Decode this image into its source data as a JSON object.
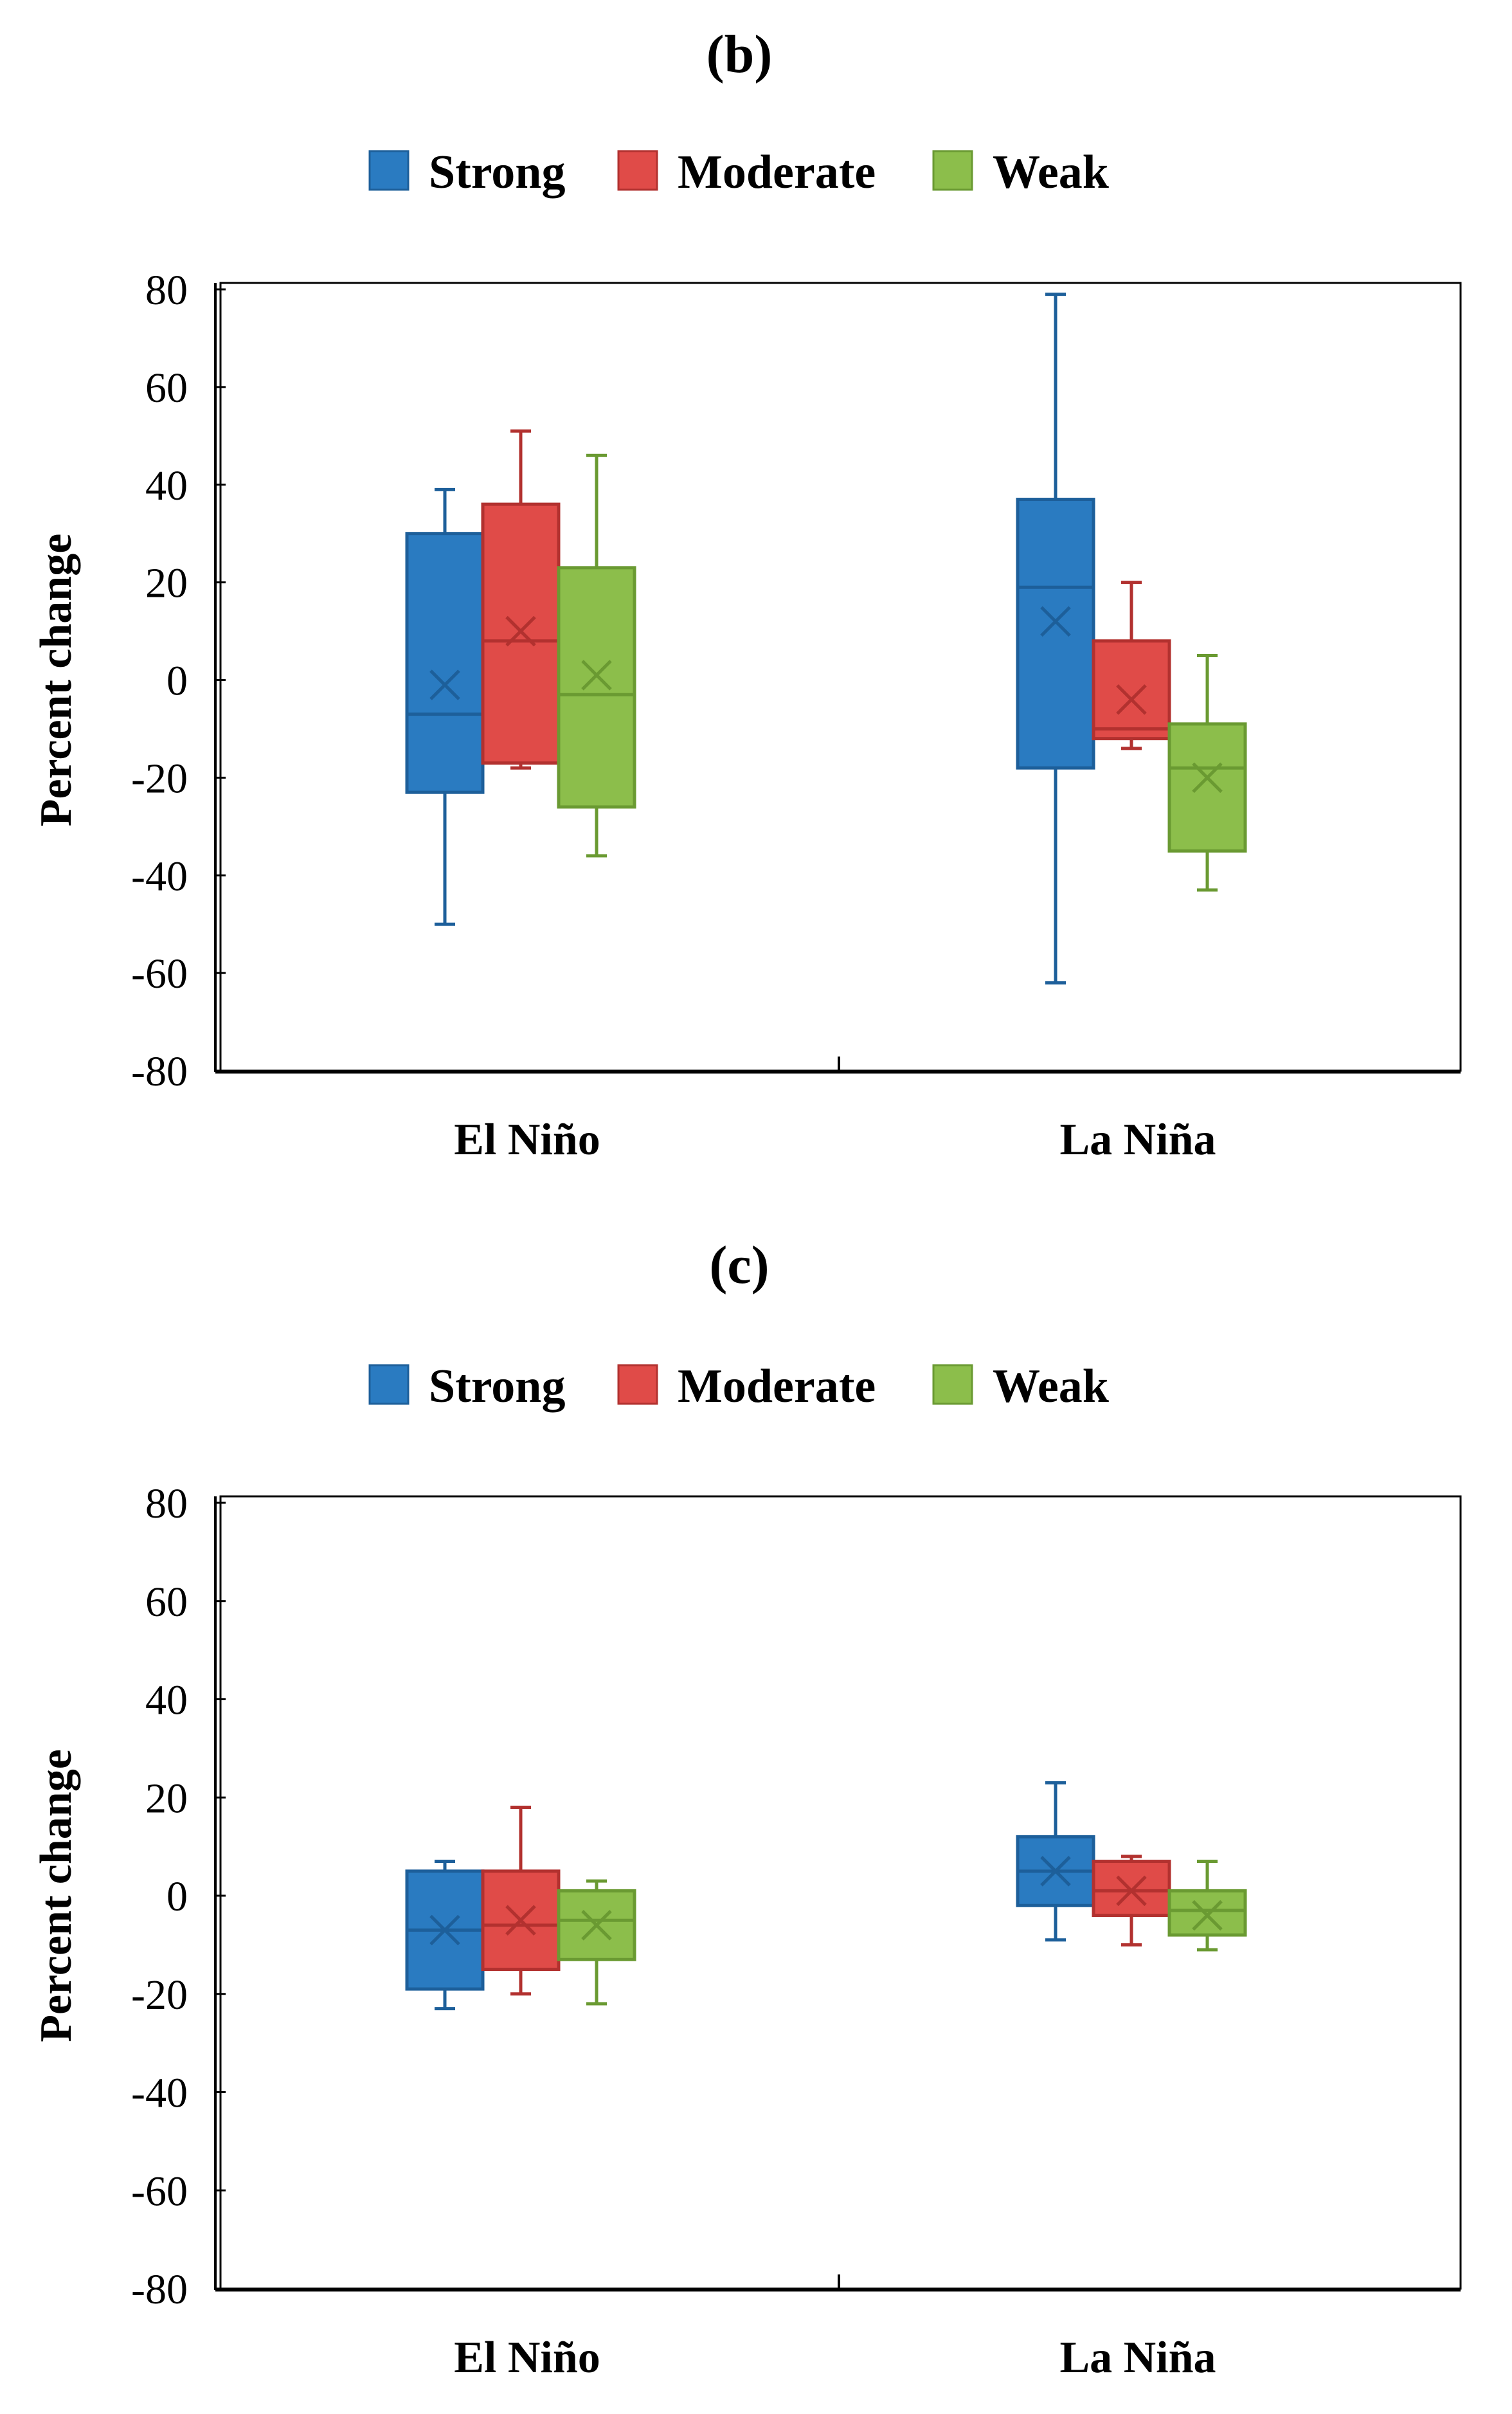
{
  "colors": {
    "Strong": {
      "fill": "#2a7bc1",
      "stroke": "#1d5f9a"
    },
    "Moderate": {
      "fill": "#e04b48",
      "stroke": "#b2312f"
    },
    "Weak": {
      "fill": "#8cbe4b",
      "stroke": "#6a9a32"
    }
  },
  "chart_data": [
    {
      "type": "box",
      "title": "(b)",
      "ylabel": "Percent change",
      "xlabel": "",
      "ylim": [
        -80,
        80
      ],
      "yticks": [
        80,
        60,
        40,
        20,
        0,
        -20,
        -40,
        -60,
        -80
      ],
      "legend": [
        "Strong",
        "Moderate",
        "Weak"
      ],
      "legend_position": "top-center",
      "categories": [
        "El Niño",
        "La Niña"
      ],
      "series": [
        {
          "name": "Strong",
          "boxes": [
            {
              "whisker_low": -50,
              "q1": -23,
              "median": -7,
              "q3": 30,
              "whisker_high": 39,
              "mean": -1
            },
            {
              "whisker_low": -62,
              "q1": -18,
              "median": 19,
              "q3": 37,
              "whisker_high": 79,
              "mean": 12
            }
          ]
        },
        {
          "name": "Moderate",
          "boxes": [
            {
              "whisker_low": -18,
              "q1": -17,
              "median": 8,
              "q3": 36,
              "whisker_high": 51,
              "mean": 10
            },
            {
              "whisker_low": -14,
              "q1": -12,
              "median": -10,
              "q3": 8,
              "whisker_high": 20,
              "mean": -4
            }
          ]
        },
        {
          "name": "Weak",
          "boxes": [
            {
              "whisker_low": -36,
              "q1": -26,
              "median": -3,
              "q3": 23,
              "whisker_high": 46,
              "mean": 1
            },
            {
              "whisker_low": -43,
              "q1": -35,
              "median": -18,
              "q3": -9,
              "whisker_high": 5,
              "mean": -20
            }
          ]
        }
      ]
    },
    {
      "type": "box",
      "title": "(c)",
      "ylabel": "Percent change",
      "xlabel": "",
      "ylim": [
        -80,
        80
      ],
      "yticks": [
        80,
        60,
        40,
        20,
        0,
        -20,
        -40,
        -60,
        -80
      ],
      "legend": [
        "Strong",
        "Moderate",
        "Weak"
      ],
      "legend_position": "top-center",
      "categories": [
        "El Niño",
        "La Niña"
      ],
      "series": [
        {
          "name": "Strong",
          "boxes": [
            {
              "whisker_low": -23,
              "q1": -19,
              "median": -7,
              "q3": 5,
              "whisker_high": 7,
              "mean": -7
            },
            {
              "whisker_low": -9,
              "q1": -2,
              "median": 5,
              "q3": 12,
              "whisker_high": 23,
              "mean": 5
            }
          ]
        },
        {
          "name": "Moderate",
          "boxes": [
            {
              "whisker_low": -20,
              "q1": -15,
              "median": -6,
              "q3": 5,
              "whisker_high": 18,
              "mean": -5
            },
            {
              "whisker_low": -10,
              "q1": -4,
              "median": 1,
              "q3": 7,
              "whisker_high": 8,
              "mean": 1
            }
          ]
        },
        {
          "name": "Weak",
          "boxes": [
            {
              "whisker_low": -22,
              "q1": -13,
              "median": -5,
              "q3": 1,
              "whisker_high": 3,
              "mean": -6
            },
            {
              "whisker_low": -11,
              "q1": -8,
              "median": -3,
              "q3": 1,
              "whisker_high": 7,
              "mean": -4
            }
          ]
        }
      ]
    }
  ]
}
